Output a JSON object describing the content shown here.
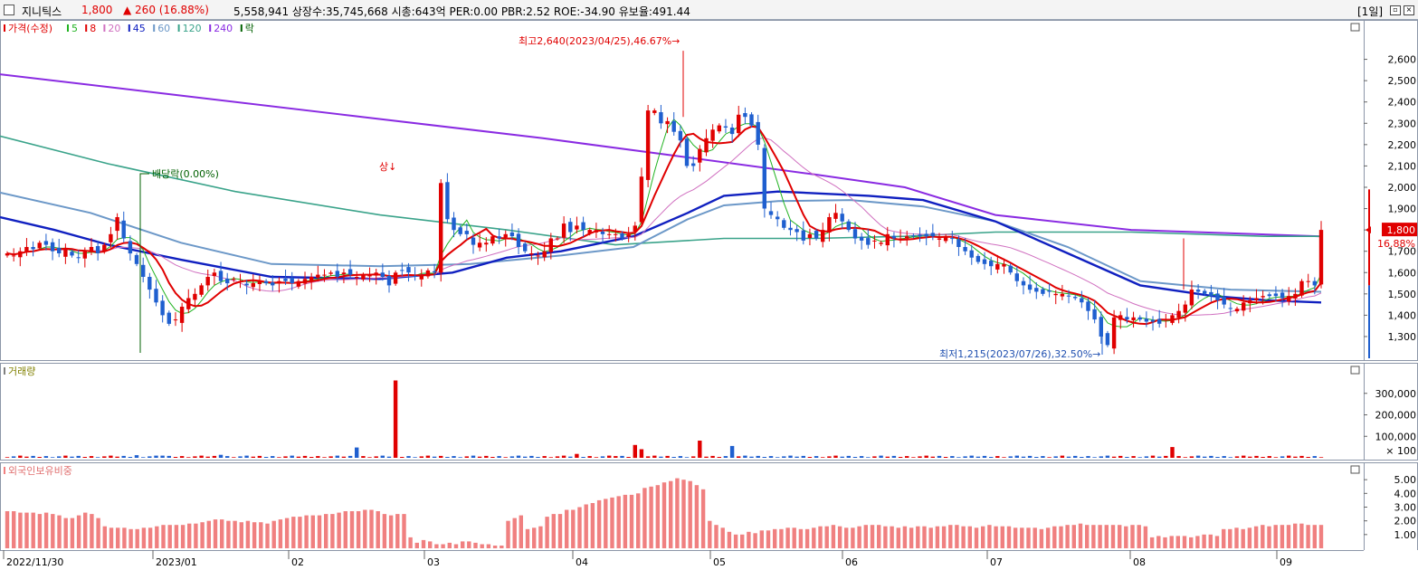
{
  "header": {
    "name": "지니틱스",
    "price": "1,800",
    "change": "▲ 260 (16.88%)",
    "stats": "5,558,941  상장수:35,745,668 시총:643억 PER:0.00 PBR:2.52 ROE:-34.90 유보율:491.44",
    "period": "[1일]",
    "colors": {
      "up": "#e00000",
      "down": "#1f5fcf"
    }
  },
  "price_panel": {
    "legend": [
      {
        "label": "가격(수정)",
        "color": "#e00000"
      },
      {
        "label": "5",
        "color": "#22b322"
      },
      {
        "label": "8",
        "color": "#e00000"
      },
      {
        "label": "20",
        "color": "#d070c0"
      },
      {
        "label": "45",
        "color": "#1020c0"
      },
      {
        "label": "60",
        "color": "#6c98c8"
      },
      {
        "label": "120",
        "color": "#3aa38a"
      },
      {
        "label": "240",
        "color": "#8a2be2"
      },
      {
        "label": "락",
        "color": "#006000"
      }
    ],
    "annotations": {
      "high": "최고2,640(2023/04/25),46.67%→",
      "low": "최저1,215(2023/07/26),32.50%→",
      "dividend": "배당락(0.00%)",
      "limit_up": "상"
    },
    "last_price_tag": "1,800",
    "last_change_tag": "16.88%"
  },
  "volume_panel": {
    "title": "거래량",
    "unit_label": "× 100"
  },
  "foreign_panel": {
    "title": "외국인보유비중"
  },
  "chart_data": [
    {
      "type": "candlestick",
      "title": "",
      "ylim": [
        1215,
        2700
      ],
      "y_ticks": [
        "2,600",
        "2,500",
        "2,400",
        "2,300",
        "2,200",
        "2,100",
        "2,000",
        "1,900",
        "1,800",
        "1,700",
        "1,600",
        "1,500",
        "1,400",
        "1,300"
      ],
      "x_ticks": [
        "2022/11/30",
        "2023/01",
        "02",
        "03",
        "04",
        "05",
        "06",
        "07",
        "08",
        "09"
      ],
      "closes": [
        1690,
        1680,
        1700,
        1720,
        1710,
        1740,
        1730,
        1700,
        1690,
        1710,
        1680,
        1670,
        1700,
        1720,
        1690,
        1730,
        1780,
        1860,
        1760,
        1690,
        1640,
        1580,
        1520,
        1460,
        1400,
        1360,
        1380,
        1440,
        1480,
        1500,
        1540,
        1580,
        1600,
        1560,
        1550,
        1570,
        1560,
        1540,
        1550,
        1560,
        1550,
        1540,
        1560,
        1560,
        1550,
        1560,
        1570,
        1580,
        1590,
        1590,
        1600,
        1580,
        1600,
        1590,
        1580,
        1590,
        1590,
        1600,
        1580,
        1540,
        1600,
        1610,
        1600,
        1580,
        1590,
        1610,
        1600,
        2020,
        1850,
        1800,
        1780,
        1780,
        1730,
        1740,
        1740,
        1770,
        1760,
        1780,
        1770,
        1720,
        1700,
        1690,
        1680,
        1700,
        1760,
        1760,
        1830,
        1790,
        1820,
        1800,
        1800,
        1800,
        1780,
        1780,
        1780,
        1760,
        1780,
        1820,
        2050,
        2360,
        2360,
        2300,
        2310,
        2260,
        2220,
        2100,
        2100,
        2180,
        2230,
        2270,
        2290,
        2280,
        2250,
        2340,
        2330,
        2290,
        2200,
        1900,
        1870,
        1850,
        1810,
        1800,
        1790,
        1750,
        1780,
        1760,
        1800,
        1860,
        1880,
        1840,
        1800,
        1760,
        1750,
        1730,
        1750,
        1740,
        1780,
        1760,
        1760,
        1770,
        1770,
        1770,
        1770,
        1770,
        1760,
        1770,
        1760,
        1720,
        1700,
        1670,
        1650,
        1640,
        1630,
        1640,
        1640,
        1600,
        1560,
        1540,
        1520,
        1510,
        1500,
        1510,
        1500,
        1500,
        1490,
        1480,
        1460,
        1420,
        1380,
        1300,
        1260,
        1390,
        1400,
        1380,
        1390,
        1380,
        1370,
        1370,
        1360,
        1380,
        1400,
        1420,
        1450,
        1520,
        1510,
        1500,
        1490,
        1470,
        1450,
        1430,
        1430,
        1460,
        1470,
        1480,
        1490,
        1490,
        1490,
        1480,
        1490,
        1500,
        1560,
        1560,
        1540,
        1800
      ]
    },
    {
      "type": "bar",
      "title": "",
      "series_name": "거래량",
      "y_ticks": [
        "300,000",
        "200,000",
        "100,000"
      ],
      "ylim": [
        0,
        400000
      ],
      "units": "× 100",
      "spikes": [
        {
          "date": "2023/02/23",
          "value": 360000
        },
        {
          "date": "2023/04/17",
          "value": 60000
        },
        {
          "date": "2023/04/25",
          "value": 80000
        },
        {
          "date": "2023/05/02",
          "value": 55000
        },
        {
          "date": "2023/09/12",
          "value": 50000
        }
      ],
      "baseline": 6000
    },
    {
      "type": "bar",
      "title": "",
      "series_name": "외국인보유비중",
      "y_ticks": [
        "5.00",
        "4.00",
        "3.00",
        "2.00",
        "1.00"
      ],
      "ylim": [
        0,
        6
      ],
      "values": [
        2.7,
        2.7,
        2.6,
        2.6,
        2.6,
        2.5,
        2.6,
        2.5,
        2.4,
        2.2,
        2.2,
        2.4,
        2.6,
        2.5,
        2.2,
        1.6,
        1.5,
        1.5,
        1.5,
        1.4,
        1.4,
        1.5,
        1.5,
        1.6,
        1.7,
        1.7,
        1.7,
        1.7,
        1.8,
        1.8,
        1.9,
        2.0,
        2.1,
        2.1,
        2.0,
        2.0,
        1.9,
        2.0,
        1.9,
        1.9,
        1.8,
        2.0,
        2.1,
        2.2,
        2.3,
        2.3,
        2.4,
        2.4,
        2.4,
        2.5,
        2.5,
        2.6,
        2.7,
        2.7,
        2.7,
        2.8,
        2.8,
        2.7,
        2.5,
        2.4,
        2.5,
        2.5,
        0.8,
        0.4,
        0.6,
        0.5,
        0.3,
        0.3,
        0.4,
        0.3,
        0.5,
        0.5,
        0.4,
        0.3,
        0.3,
        0.2,
        0.2,
        2.0,
        2.2,
        2.4,
        1.4,
        1.5,
        1.6,
        2.3,
        2.5,
        2.5,
        2.8,
        2.8,
        3.0,
        3.2,
        3.3,
        3.5,
        3.6,
        3.7,
        3.8,
        3.9,
        3.9,
        4.0,
        4.4,
        4.5,
        4.6,
        4.8,
        4.9,
        5.1,
        5.0,
        4.9,
        4.6,
        4.3,
        2.0,
        1.7,
        1.5,
        1.2,
        1.0,
        1.0,
        1.2,
        1.1,
        1.3,
        1.3,
        1.4,
        1.4,
        1.5,
        1.5,
        1.4,
        1.4,
        1.5,
        1.6,
        1.6,
        1.7,
        1.6,
        1.5,
        1.5,
        1.6,
        1.7,
        1.7,
        1.7,
        1.6,
        1.6,
        1.5,
        1.6,
        1.5,
        1.6,
        1.6,
        1.5,
        1.6,
        1.6,
        1.7,
        1.7,
        1.6,
        1.6,
        1.5,
        1.6,
        1.7,
        1.6,
        1.6,
        1.6,
        1.5,
        1.5,
        1.5,
        1.5,
        1.4,
        1.5,
        1.6,
        1.6,
        1.7,
        1.7,
        1.8,
        1.7,
        1.7,
        1.7,
        1.7,
        1.7,
        1.7,
        1.6,
        1.7,
        1.7,
        1.6,
        0.8,
        0.9,
        0.8,
        0.9,
        0.9,
        0.9,
        0.8,
        0.9,
        1.0,
        1.0,
        0.9,
        1.4,
        1.4,
        1.5,
        1.4,
        1.5,
        1.6,
        1.7,
        1.6,
        1.7,
        1.7,
        1.7,
        1.8,
        1.8,
        1.7,
        1.7,
        1.7
      ]
    }
  ]
}
